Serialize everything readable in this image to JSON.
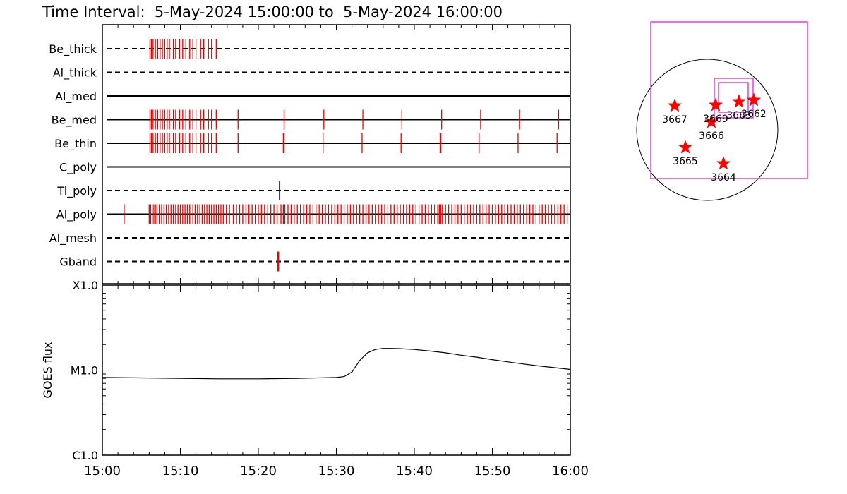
{
  "title": "Time Interval:  5-May-2024 15:00:00 to  5-May-2024 16:00:00",
  "colors": {
    "frame": "#000000",
    "exposure": "#ee0000",
    "exposure_alt": "#0000ee",
    "star": "#ff0000",
    "fov": "#dd22dd",
    "limb": "#000000"
  },
  "chart_data": [
    {
      "type": "timeline",
      "x_range": [
        "15:00",
        "16:00"
      ],
      "rows": [
        {
          "label": "Be_thick",
          "line": "dashed",
          "ticks": [
            6.1,
            6.3,
            6.5,
            6.8,
            7.1,
            7.4,
            7.7,
            8.0,
            8.3,
            8.6,
            9.1,
            9.4,
            9.9,
            10.3,
            10.7,
            11.2,
            11.6,
            12.0,
            12.6,
            13.0,
            13.6,
            14.0,
            14.6
          ]
        },
        {
          "label": "Al_thick",
          "line": "dashed",
          "ticks": []
        },
        {
          "label": "Al_med",
          "line": "solid",
          "ticks": []
        },
        {
          "label": "Be_med",
          "line": "solid",
          "ticks": [
            6.1,
            6.3,
            6.5,
            6.8,
            7.1,
            7.4,
            7.7,
            8.0,
            8.3,
            8.6,
            9.1,
            9.4,
            9.9,
            10.3,
            10.7,
            11.2,
            11.6,
            12.0,
            12.6,
            13.0,
            13.6,
            14.0,
            14.6,
            17.4,
            23.3,
            28.4,
            33.4,
            38.4,
            43.5,
            48.5,
            53.5,
            58.5
          ]
        },
        {
          "label": "Be_thin",
          "line": "solid",
          "ticks": [
            6.1,
            6.3,
            6.5,
            6.8,
            7.1,
            7.4,
            7.7,
            8.0,
            8.3,
            8.6,
            9.1,
            9.4,
            9.9,
            10.3,
            10.7,
            11.2,
            11.6,
            12.0,
            12.6,
            13.0,
            13.6,
            14.0,
            14.6,
            17.4,
            23.2,
            23.3,
            28.3,
            33.3,
            38.3,
            43.3,
            43.4,
            48.3,
            53.3,
            58.3
          ]
        },
        {
          "label": "C_poly",
          "line": "solid",
          "ticks": []
        },
        {
          "label": "Ti_poly",
          "line": "dashed",
          "ticks": [],
          "alt_ticks": [
            22.7
          ]
        },
        {
          "label": "Al_poly",
          "line": "solid",
          "ticks": [
            2.8,
            6.0,
            6.2,
            6.4,
            6.6,
            6.8,
            7.0,
            7.3,
            7.6,
            7.9,
            8.2,
            8.5,
            8.8,
            9.1,
            9.4,
            9.7,
            10.0,
            10.3,
            10.6,
            10.9,
            11.2,
            11.6,
            11.9,
            12.2,
            12.5,
            12.8,
            13.1,
            13.4,
            13.7,
            14.0,
            14.3,
            14.6,
            14.9,
            15.2,
            15.5,
            15.9,
            16.3,
            16.8,
            17.2,
            17.6,
            18.0,
            18.4,
            18.8,
            19.2,
            19.6,
            20.0,
            20.4,
            20.8,
            21.2,
            21.6,
            22.0,
            22.4,
            22.9,
            23.2,
            23.4,
            23.8,
            24.2,
            24.6,
            25.0,
            25.4,
            25.8,
            26.2,
            26.6,
            27.0,
            27.4,
            27.8,
            28.2,
            28.6,
            29.0,
            29.4,
            29.8,
            30.2,
            30.6,
            31.0,
            31.4,
            31.8,
            32.2,
            32.6,
            33.0,
            33.4,
            33.8,
            34.2,
            34.6,
            35.0,
            35.4,
            35.8,
            36.2,
            36.6,
            37.0,
            37.4,
            37.8,
            38.2,
            38.6,
            39.0,
            39.4,
            39.8,
            40.2,
            40.6,
            41.0,
            41.4,
            41.8,
            42.2,
            42.6,
            43.0,
            43.2,
            43.4,
            43.6,
            44.0,
            44.4,
            44.8,
            45.2,
            45.6,
            46.0,
            46.4,
            46.8,
            47.2,
            47.6,
            48.0,
            48.4,
            48.8,
            49.2,
            49.6,
            50.0,
            50.4,
            50.8,
            51.2,
            51.6,
            52.0,
            52.4,
            52.8,
            53.2,
            53.6,
            54.0,
            54.4,
            54.8,
            55.2,
            55.6,
            56.0,
            56.4,
            56.8,
            57.2,
            57.6,
            58.0,
            58.4,
            58.8,
            59.2,
            59.6
          ]
        },
        {
          "label": "Al_mesh",
          "line": "dashed",
          "ticks": []
        },
        {
          "label": "Gband",
          "line": "dashed",
          "ticks": [
            22.5,
            22.6
          ]
        }
      ]
    },
    {
      "type": "line",
      "ylabel": "GOES flux",
      "y_scale": "log",
      "yticks": [
        "C1.0",
        "M1.0",
        "X1.0"
      ],
      "ylim": [
        1e-06,
        0.0001
      ],
      "xticks": [
        "15:00",
        "15:10",
        "15:20",
        "15:30",
        "15:40",
        "15:50",
        "16:00"
      ],
      "series": [
        {
          "x": [
            0,
            5,
            10,
            15,
            20,
            25,
            30,
            31,
            32,
            33,
            34,
            35,
            36,
            37,
            38,
            40,
            42,
            44,
            46,
            48,
            50,
            52,
            54,
            56,
            58,
            60
          ],
          "y": [
            8.2e-06,
            8.1e-06,
            8e-06,
            7.9e-06,
            7.9e-06,
            8e-06,
            8.2e-06,
            8.4e-06,
            9.5e-06,
            1.3e-05,
            1.6e-05,
            1.75e-05,
            1.8e-05,
            1.8e-05,
            1.79e-05,
            1.75e-05,
            1.68e-05,
            1.6e-05,
            1.5e-05,
            1.42e-05,
            1.33e-05,
            1.25e-05,
            1.18e-05,
            1.12e-05,
            1.07e-05,
            1.02e-05
          ]
        }
      ]
    }
  ],
  "context_map": {
    "type": "scatter",
    "regions": [
      {
        "label": "3662",
        "x": 0.66,
        "y": 0.42
      },
      {
        "label": "3663",
        "x": 0.45,
        "y": 0.4
      },
      {
        "label": "3664",
        "x": 0.23,
        "y": -0.48
      },
      {
        "label": "3665",
        "x": -0.31,
        "y": -0.25
      },
      {
        "label": "3666",
        "x": 0.06,
        "y": 0.11
      },
      {
        "label": "3667",
        "x": -0.46,
        "y": 0.34
      },
      {
        "label": "3669",
        "x": 0.12,
        "y": 0.35
      }
    ]
  }
}
